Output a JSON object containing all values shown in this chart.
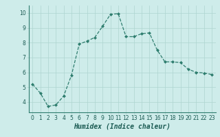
{
  "x": [
    0,
    1,
    2,
    3,
    4,
    5,
    6,
    7,
    8,
    9,
    10,
    11,
    12,
    13,
    14,
    15,
    16,
    17,
    18,
    19,
    20,
    21,
    22,
    23
  ],
  "y": [
    5.2,
    4.6,
    3.7,
    3.8,
    4.4,
    5.8,
    7.9,
    8.1,
    8.35,
    9.1,
    9.9,
    9.95,
    8.4,
    8.4,
    8.6,
    8.65,
    7.5,
    6.7,
    6.7,
    6.65,
    6.2,
    6.0,
    5.95,
    5.85
  ],
  "line_color": "#2e7d6e",
  "marker": "D",
  "marker_size": 2.0,
  "linewidth": 0.9,
  "xlabel": "Humidex (Indice chaleur)",
  "xlim": [
    -0.5,
    23.5
  ],
  "ylim": [
    3.3,
    10.5
  ],
  "yticks": [
    4,
    5,
    6,
    7,
    8,
    9,
    10
  ],
  "xticks": [
    0,
    1,
    2,
    3,
    4,
    5,
    6,
    7,
    8,
    9,
    10,
    11,
    12,
    13,
    14,
    15,
    16,
    17,
    18,
    19,
    20,
    21,
    22,
    23
  ],
  "bg_color": "#ceecea",
  "grid_color": "#aed4d0",
  "xlabel_fontsize": 7,
  "tick_fontsize": 5.5
}
